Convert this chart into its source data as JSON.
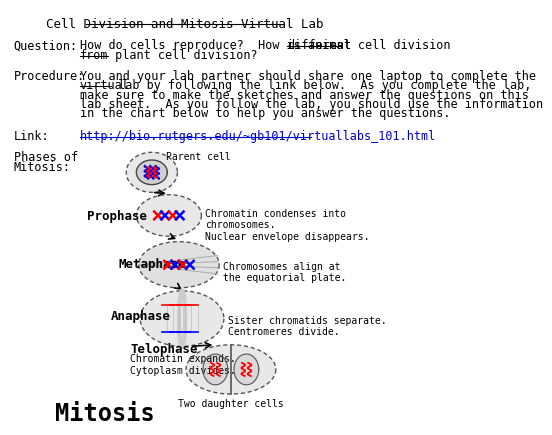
{
  "title": "Cell Division and Mitosis Virtual Lab",
  "question_label": "Question:",
  "question_text1": "How do cells reproduce?  How is animal cell division ",
  "question_different": "different",
  "question_from": "from",
  "question_rest": " plant cell division?",
  "procedure_label": "Procedure:",
  "proc_line1": "You and your lab partner should share one laptop to complete the",
  "proc_line2_ul": "virtual",
  "proc_line2_rest": " lab by following the link below.  As you complete the lab,",
  "proc_line3": "make sure to make the sketches and answer the questions on this",
  "proc_line4": "lab sheet.  As you follow the lab, you should use the information",
  "proc_line5": "in the chart below to help you answer the questions.",
  "link_label": "Link:",
  "link_text": "http://bio.rutgers.edu/~gb101/virtuallabs_101.html",
  "phases_label1": "Phases of",
  "phases_label2": "Mitosis:",
  "mitosis_label": "Mitosis",
  "two_daughter_label": "Two daughter cells",
  "parent_cell_label": "Parent cell",
  "prophase_label": "Prophase",
  "prophase_desc": "Chromatin condenses into\nchromosomes.\nNuclear envelope disappears.",
  "metaphase_label": "Metaphase",
  "metaphase_desc": "Chromosomes align at\nthe equatorial plate.",
  "anaphase_label": "Anaphase",
  "anaphase_desc": "Sister chromatids separate.\nCentromeres divide.",
  "telophase_label": "Telophase",
  "telophase_desc": "Chromatin expands.\nCytoplasm divides.",
  "background_color": "#ffffff",
  "text_color": "#000000",
  "link_color": "#0000cc",
  "title_color": "#000000"
}
